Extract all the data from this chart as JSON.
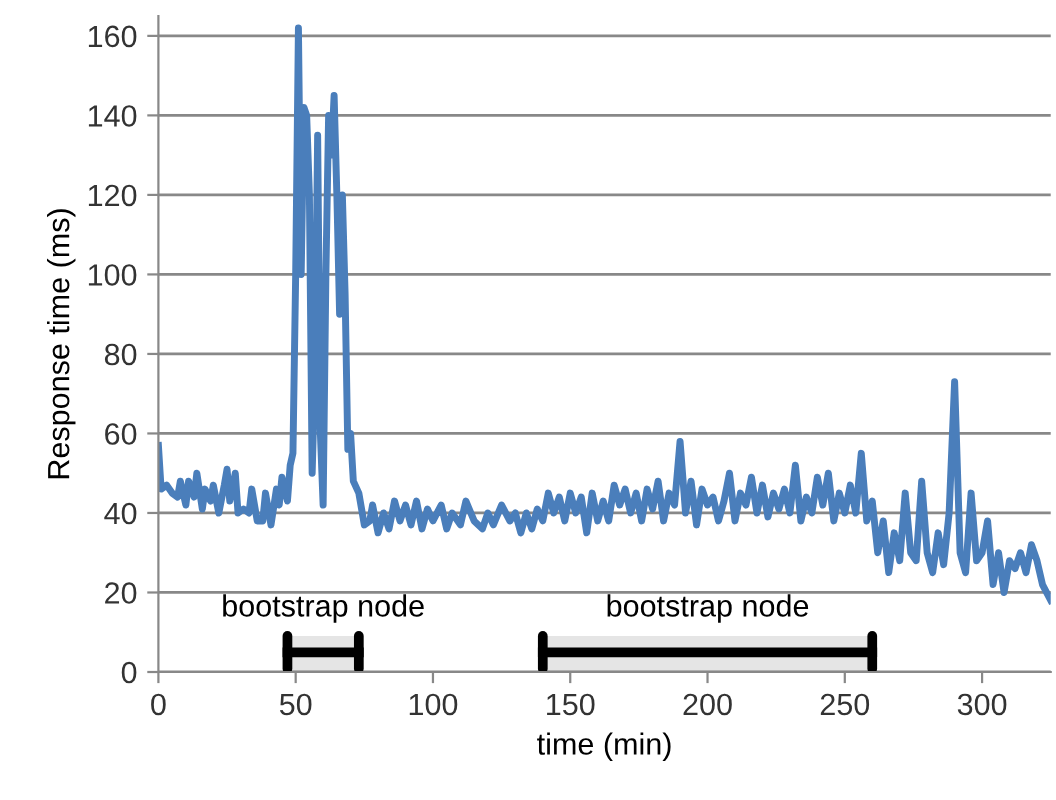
{
  "chart_data": {
    "type": "line",
    "xlabel": "time (min)",
    "ylabel": "Response time (ms)",
    "xlim": [
      0,
      325
    ],
    "xticks": [
      0,
      50,
      100,
      150,
      200,
      250,
      300
    ],
    "ylim": [
      0,
      165
    ],
    "yticks": [
      0,
      20,
      40,
      60,
      80,
      100,
      120,
      140,
      160
    ],
    "grid": "y",
    "legend": false,
    "marker": "none",
    "line_style": "solid",
    "bands": [
      {
        "axis": "x",
        "from": 47,
        "to": 73,
        "label": "bootstrap node",
        "color": "#000000"
      },
      {
        "axis": "x",
        "from": 140,
        "to": 260,
        "label": "bootstrap node",
        "color": "#000000"
      }
    ],
    "series": [
      {
        "color": "#4a7ebb",
        "x": [
          0,
          1,
          3,
          5,
          7,
          8,
          10,
          11,
          13,
          14,
          16,
          17,
          19,
          20,
          22,
          24,
          25,
          26,
          28,
          29,
          31,
          33,
          34,
          36,
          38,
          39,
          41,
          43,
          44,
          45,
          47,
          48,
          49,
          50,
          51,
          52,
          53,
          54,
          55,
          56,
          57,
          58,
          59,
          60,
          61,
          62,
          63,
          64,
          65,
          66,
          67,
          68,
          69,
          70,
          71,
          73,
          75,
          77,
          78,
          80,
          82,
          84,
          86,
          88,
          90,
          92,
          94,
          96,
          98,
          100,
          103,
          105,
          107,
          110,
          112,
          115,
          118,
          120,
          122,
          125,
          128,
          130,
          132,
          134,
          136,
          138,
          140,
          142,
          144,
          146,
          148,
          150,
          152,
          154,
          156,
          158,
          160,
          162,
          164,
          166,
          168,
          170,
          172,
          174,
          176,
          178,
          180,
          182,
          184,
          186,
          188,
          190,
          192,
          194,
          196,
          198,
          200,
          202,
          204,
          206,
          208,
          210,
          212,
          214,
          216,
          218,
          220,
          222,
          224,
          226,
          228,
          230,
          232,
          234,
          236,
          238,
          240,
          242,
          244,
          246,
          248,
          250,
          252,
          254,
          256,
          258,
          260,
          262,
          264,
          266,
          268,
          270,
          272,
          274,
          276,
          278,
          280,
          282,
          284,
          286,
          288,
          290,
          292,
          294,
          296,
          298,
          300,
          302,
          304,
          306,
          308,
          310,
          312,
          314,
          316,
          318,
          320,
          322,
          325
        ],
        "values": [
          57,
          46,
          47,
          45,
          44,
          48,
          42,
          48,
          44,
          50,
          41,
          46,
          43,
          47,
          40,
          47,
          51,
          43,
          50,
          40,
          41,
          40,
          46,
          38,
          38,
          45,
          37,
          46,
          42,
          49,
          43,
          52,
          55,
          100,
          162,
          100,
          142,
          140,
          120,
          50,
          75,
          135,
          60,
          42,
          100,
          140,
          130,
          145,
          120,
          90,
          120,
          95,
          56,
          60,
          48,
          45,
          37,
          38,
          42,
          35,
          40,
          36,
          43,
          38,
          42,
          37,
          43,
          36,
          41,
          38,
          42,
          36,
          40,
          37,
          43,
          38,
          36,
          40,
          37,
          42,
          38,
          40,
          35,
          40,
          36,
          41,
          38,
          45,
          40,
          44,
          38,
          45,
          40,
          44,
          35,
          45,
          38,
          43,
          38,
          47,
          42,
          46,
          40,
          45,
          38,
          46,
          41,
          48,
          38,
          45,
          42,
          58,
          40,
          48,
          37,
          46,
          42,
          44,
          38,
          43,
          50,
          38,
          45,
          42,
          49,
          40,
          47,
          39,
          45,
          41,
          46,
          40,
          52,
          38,
          44,
          40,
          49,
          42,
          50,
          38,
          45,
          40,
          47,
          40,
          55,
          38,
          43,
          30,
          38,
          25,
          35,
          28,
          45,
          30,
          28,
          48,
          30,
          25,
          35,
          27,
          40,
          73,
          30,
          25,
          45,
          28,
          30,
          38,
          22,
          30,
          20,
          28,
          26,
          30,
          25,
          32,
          28,
          22,
          18
        ]
      }
    ]
  }
}
